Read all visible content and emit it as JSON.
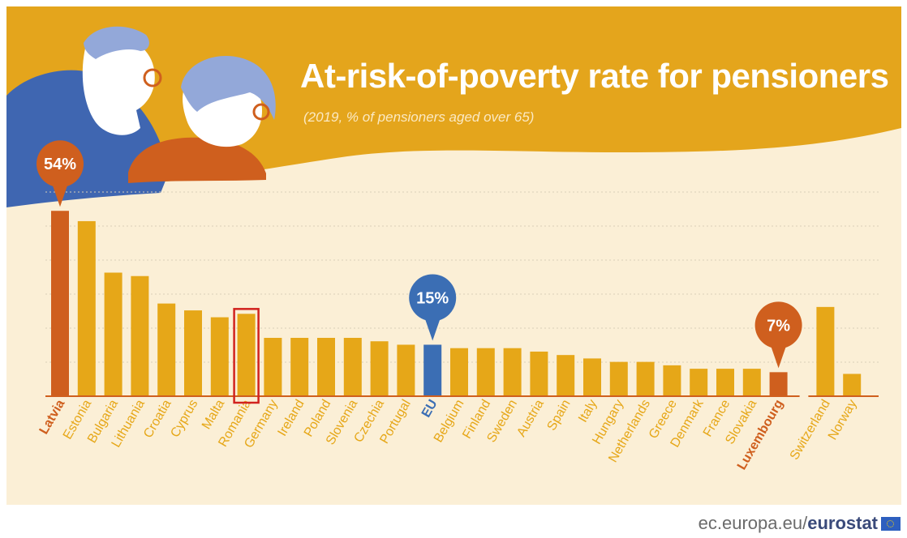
{
  "title": "At-risk-of-poverty rate for pensioners",
  "subtitle": "(2019, % of pensioners aged over 65)",
  "footer": {
    "site": "ec.europa.eu/",
    "brand": "eurostat"
  },
  "colors": {
    "default_bar": "#e6a718",
    "highlight_bar": "#cf5f1e",
    "eu_bar": "#3b6eb4",
    "header": "#e4a51c",
    "background": "#fbefd6",
    "callout_box": "#d1221e"
  },
  "callouts": [
    {
      "category": "Latvia",
      "label": "54%"
    },
    {
      "category": "EU",
      "label": "15%"
    },
    {
      "category": "Luxembourg",
      "label": "7%"
    }
  ],
  "highlight_box": {
    "category": "Romania"
  },
  "chart_data": {
    "type": "bar",
    "title": "At-risk-of-poverty rate for pensioners",
    "subtitle": "(2019, % of pensioners aged over 65)",
    "xlabel": "",
    "ylabel": "",
    "ylim": [
      0,
      55
    ],
    "grid": true,
    "categories": [
      "Latvia",
      "Estonia",
      "Bulgaria",
      "Lithuania",
      "Croatia",
      "Cyprus",
      "Malta",
      "Romania",
      "Germany",
      "Ireland",
      "Poland",
      "Slovenia",
      "Czechia",
      "Portugal",
      "EU",
      "Belgium",
      "Finland",
      "Sweden",
      "Austria",
      "Spain",
      "Italy",
      "Hungary",
      "Netherlands",
      "Greece",
      "Denmark",
      "France",
      "Slovakia",
      "Luxembourg",
      "Switzerland",
      "Norway"
    ],
    "values": [
      54,
      51,
      36,
      35,
      27,
      25,
      23,
      24,
      17,
      17,
      17,
      17,
      16,
      15,
      15,
      14,
      14,
      14,
      13,
      12,
      11,
      10,
      10,
      9,
      8,
      8,
      8,
      7,
      26,
      6.5
    ],
    "bar_style": [
      "highlight",
      "default",
      "default",
      "default",
      "default",
      "default",
      "default",
      "default",
      "default",
      "default",
      "default",
      "default",
      "default",
      "default",
      "eu",
      "default",
      "default",
      "default",
      "default",
      "default",
      "default",
      "default",
      "default",
      "default",
      "default",
      "default",
      "default",
      "highlight",
      "default",
      "default"
    ],
    "label_style": [
      "highlight",
      "default",
      "default",
      "default",
      "default",
      "default",
      "default",
      "default",
      "default",
      "default",
      "default",
      "default",
      "default",
      "default",
      "eu",
      "default",
      "default",
      "default",
      "default",
      "default",
      "default",
      "default",
      "default",
      "default",
      "default",
      "default",
      "default",
      "highlight",
      "default",
      "default"
    ]
  }
}
